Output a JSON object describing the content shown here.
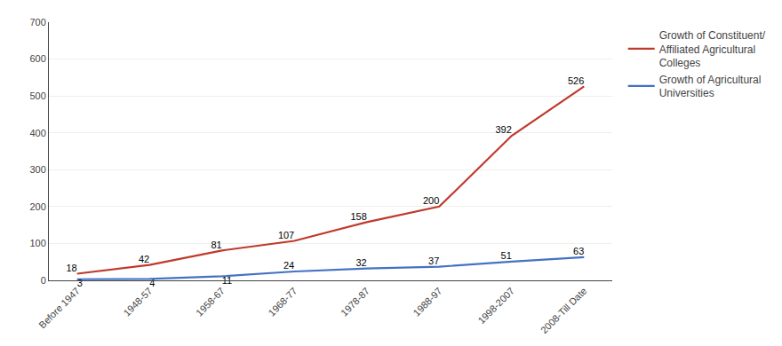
{
  "chart_data": {
    "type": "line",
    "categories": [
      "Before 1947",
      "1948-57",
      "1958-67",
      "1968-77",
      "1978-87",
      "1988-97",
      "1998-2007",
      "2008-Till Date"
    ],
    "series": [
      {
        "name": "Growth of Constituent/\nAffiliated Agricultural\nColleges",
        "color": "#c0392b",
        "values": [
          18,
          42,
          81,
          107,
          158,
          200,
          392,
          526
        ]
      },
      {
        "name": "Growth of Agricultural\nUniversities",
        "color": "#4472c4",
        "values": [
          3,
          4,
          11,
          24,
          32,
          37,
          51,
          63
        ]
      }
    ],
    "ylim": [
      0,
      700
    ],
    "yticks": [
      0,
      100,
      200,
      300,
      400,
      500,
      600,
      700
    ],
    "grid": true,
    "legend": "right",
    "data_labels": true
  }
}
